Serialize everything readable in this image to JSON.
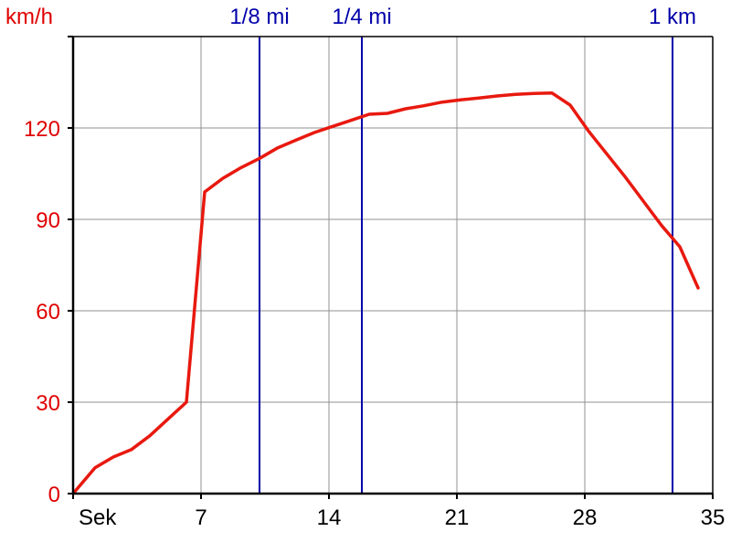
{
  "chart_data": {
    "type": "line",
    "y_unit_label": "km/h",
    "x_unit_label": "Sek",
    "xlim": [
      0,
      35
    ],
    "ylim": [
      0,
      150
    ],
    "x_ticks": [
      7,
      14,
      21,
      28,
      35
    ],
    "y_ticks": [
      0,
      30,
      60,
      90,
      120
    ],
    "grid": true,
    "series": [
      {
        "color": "#e8190f",
        "points": [
          [
            0,
            0
          ],
          [
            1.2,
            8.5
          ],
          [
            2.2,
            12
          ],
          [
            3.2,
            14.5
          ],
          [
            4.2,
            19
          ],
          [
            5.2,
            24.5
          ],
          [
            6.2,
            30
          ],
          [
            7.2,
            99
          ],
          [
            8.2,
            103.5
          ],
          [
            9.2,
            107
          ],
          [
            10.2,
            110
          ],
          [
            11.2,
            113.5
          ],
          [
            12.2,
            116
          ],
          [
            13.2,
            118.5
          ],
          [
            14.2,
            120.5
          ],
          [
            15.2,
            122.5
          ],
          [
            16.2,
            124.5
          ],
          [
            17.2,
            124.8
          ],
          [
            18.2,
            126.3
          ],
          [
            19.2,
            127.3
          ],
          [
            20.2,
            128.5
          ],
          [
            21.2,
            129.2
          ],
          [
            22.2,
            129.8
          ],
          [
            23.2,
            130.5
          ],
          [
            24.2,
            131
          ],
          [
            25.2,
            131.3
          ],
          [
            26.2,
            131.5
          ],
          [
            27.2,
            127.5
          ],
          [
            28.2,
            119
          ],
          [
            29.2,
            111.5
          ],
          [
            30.2,
            104
          ],
          [
            31.2,
            96
          ],
          [
            32.2,
            88
          ],
          [
            33.2,
            81
          ],
          [
            34.2,
            67.5
          ]
        ]
      }
    ],
    "markers": [
      {
        "label": "1/8 mi",
        "x": 10.2,
        "color": "#0000aa"
      },
      {
        "label": "1/4 mi",
        "x": 15.8,
        "color": "#0000aa"
      },
      {
        "label": "1 km",
        "x": 32.8,
        "color": "#0000aa"
      }
    ],
    "colors": {
      "line": "#e8190f",
      "y_axis_text": "#e00000",
      "x_axis_text": "#000000",
      "marker": "#0000aa",
      "grid": "#909090",
      "frame": "#000000"
    }
  }
}
